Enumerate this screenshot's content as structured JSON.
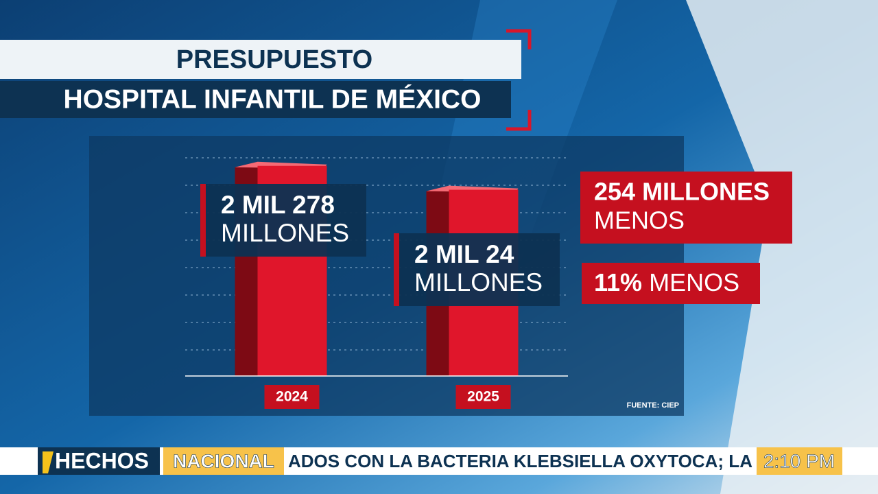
{
  "chart_data": {
    "type": "bar",
    "title": "PRESUPUESTO",
    "subtitle": "HOSPITAL INFANTIL DE MÉXICO",
    "categories": [
      "2024",
      "2025"
    ],
    "values": [
      2278,
      2024
    ],
    "value_labels": [
      "2 MIL 278",
      "2 MIL 24"
    ],
    "unit_label": "MILLONES",
    "color": "#e0162b",
    "ylim": [
      0,
      2320
    ],
    "annotations": [
      {
        "bold": "254 MILLONES",
        "text": "MENOS"
      },
      {
        "bold": "11%",
        "text": "MENOS"
      }
    ],
    "source": "FUENTE: CIEP"
  },
  "ticker": {
    "logo": "HECHOS",
    "section": "NACIONAL",
    "text": "ADOS CON LA BACTERIA KLEBSIELLA OXYTOCA; LA DEPE",
    "time": "2:10 PM"
  }
}
